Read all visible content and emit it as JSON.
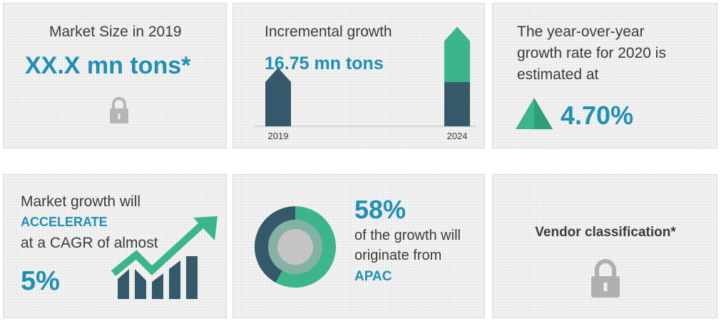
{
  "card1": {
    "label": "Market Size in 2019",
    "value": "XX.X mn tons*",
    "icon": "lock-icon"
  },
  "card2": {
    "label": "Incremental growth",
    "value": "16.75 mn tons",
    "chart_data": {
      "type": "bar",
      "categories": [
        "2019",
        "2024"
      ],
      "series": [
        {
          "values": [
            1,
            1
          ]
        },
        {
          "values": [
            0,
            1.25
          ]
        }
      ]
    }
  },
  "card3": {
    "line1": "The year-over-year",
    "line2": "growth rate for 2020 is",
    "line3": "estimated at",
    "value": "4.70%",
    "icon": "triangle-up-icon"
  },
  "card4": {
    "line1": "Market growth will",
    "accent": "ACCELERATE",
    "line2": "at a CAGR of almost",
    "value": "5%",
    "icon": "growth-arrow-bars-icon"
  },
  "card5": {
    "value": "58%",
    "line1": "of the growth will",
    "line2": "originate from",
    "region": "APAC",
    "chart_data": {
      "type": "pie",
      "slices": [
        {
          "value": 58
        },
        {
          "value": 42
        }
      ]
    }
  },
  "card6": {
    "label": "Vendor classification*",
    "icon": "lock-icon"
  },
  "colors": {
    "teal": "#1f8fb5",
    "green": "#3cb58a",
    "navy": "#35586b",
    "lock": "#b0b0b0"
  }
}
